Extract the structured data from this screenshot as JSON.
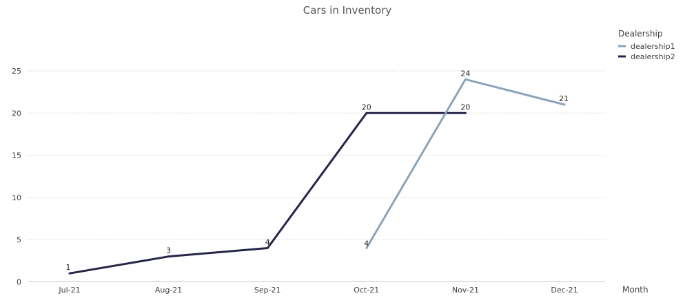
{
  "chart_data": {
    "type": "line",
    "title": "Cars in Inventory",
    "xlabel": "Month",
    "ylabel": "",
    "categories": [
      "Jul-21",
      "Aug-21",
      "Sep-21",
      "Oct-21",
      "Nov-21",
      "Dec-21"
    ],
    "yticks": [
      0,
      5,
      10,
      15,
      20,
      25
    ],
    "ylim": [
      0,
      30
    ],
    "grid": true,
    "legend": {
      "title": "Dealership",
      "position": "top-right"
    },
    "series": [
      {
        "name": "dealership1",
        "color": "#8aa4bb",
        "values": [
          null,
          null,
          null,
          4,
          24,
          21
        ]
      },
      {
        "name": "dealership2",
        "color": "#242548",
        "values": [
          1,
          3,
          4,
          20,
          20,
          null
        ]
      }
    ]
  }
}
